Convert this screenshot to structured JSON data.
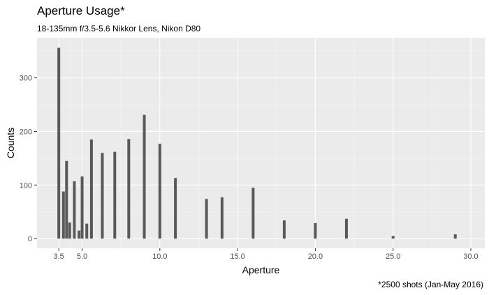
{
  "chart_data": {
    "type": "bar",
    "title": "Aperture Usage*",
    "subtitle": "18-135mm f/3.5-5.6 Nikkor Lens, Nikon D80",
    "caption": "*2500 shots (Jan-May 2016)",
    "xlabel": "Aperture",
    "ylabel": "Counts",
    "xlim": [
      2.1,
      30.9
    ],
    "ylim": [
      -18,
      375
    ],
    "x_ticks": [
      3.5,
      5.0,
      10.0,
      15.0,
      20.0,
      25.0,
      30.0
    ],
    "x_tick_labels": [
      "3.5",
      "5.0",
      "10.0",
      "15.0",
      "20.0",
      "25.0",
      "30.0"
    ],
    "y_ticks": [
      0,
      100,
      200,
      300
    ],
    "y_tick_labels": [
      "0",
      "100",
      "200",
      "300"
    ],
    "grid": true,
    "bar_color": "#595959",
    "panel_color": "#ebebeb",
    "x": [
      3.5,
      3.8,
      4.0,
      4.2,
      4.5,
      4.8,
      5.0,
      5.3,
      5.6,
      6.3,
      7.1,
      8.0,
      9.0,
      10.0,
      11.0,
      13.0,
      14.0,
      16.0,
      18.0,
      20.0,
      22.0,
      25.0,
      29.0
    ],
    "values": [
      356,
      88,
      145,
      30,
      107,
      15,
      116,
      28,
      185,
      160,
      162,
      186,
      231,
      177,
      113,
      74,
      77,
      95,
      34,
      29,
      37,
      5,
      8
    ]
  }
}
